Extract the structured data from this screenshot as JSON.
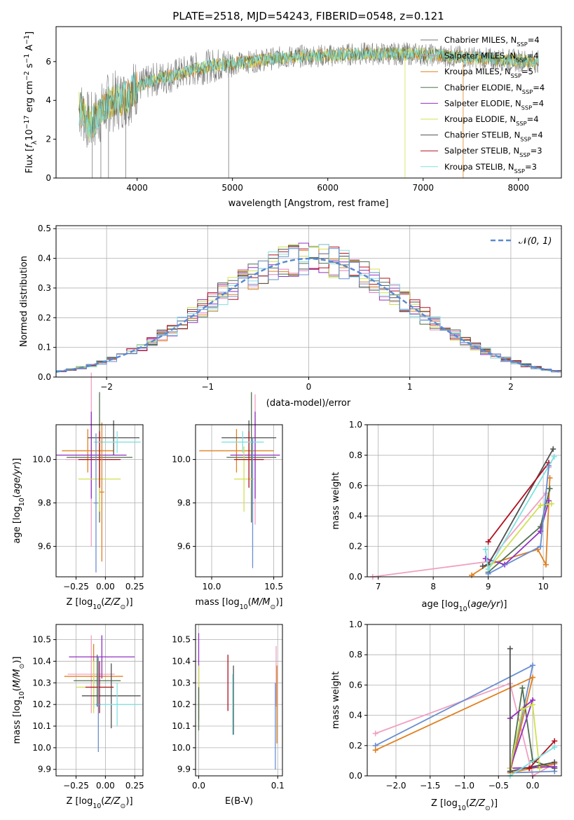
{
  "figure": {
    "title": "PLATE=2518, MJD=54243, FIBERID=0548, z=0.121"
  },
  "colors": {
    "series": [
      "#f0a0c0",
      "#f0a0c0",
      "#e08020",
      "#507050",
      "#9030c0",
      "#d0e050",
      "#505050",
      "#b01020",
      "#80e0e0",
      "#6a8fd0"
    ],
    "legend_line_colors": [
      "#7a7a7a",
      "#e080c0",
      "#e08020",
      "#507050",
      "#9030c0",
      "#d0e050",
      "#505050",
      "#b01020",
      "#80e0e0"
    ],
    "gaussian": "#5a8ad0",
    "grid": "#b0b0b0"
  },
  "chart_data": [
    {
      "id": "spectrum",
      "type": "line",
      "title": "PLATE=2518, MJD=54243, FIBERID=0548, z=0.121",
      "xlabel": "wavelength [Angstrom, rest frame]",
      "ylabel": "Flux [f_λ 10^-17 erg cm^-2 s^-1 A^-1]",
      "xlim": [
        3150,
        8450
      ],
      "ylim": [
        0,
        7.8
      ],
      "xticks": [
        4000,
        5000,
        6000,
        7000,
        8000
      ],
      "yticks": [
        0,
        2,
        4,
        6
      ],
      "grid": false,
      "legend_position": "right",
      "legend": [
        "Chabrier MILES, N_SSP=4",
        "Salpeter MILES, N_SSP=4",
        "Kroupa MILES, N_SSP=5",
        "Chabrier ELODIE, N_SSP=4",
        "Salpeter ELODIE, N_SSP=4",
        "Kroupa ELODIE, N_SSP=4",
        "Chabrier STELIB, N_SSP=4",
        "Salpeter STELIB, N_SSP=3",
        "Kroupa STELIB, N_SSP=3"
      ],
      "continuum": {
        "x": [
          3400,
          3500,
          3600,
          3700,
          3800,
          3900,
          4000,
          4200,
          4400,
          4600,
          4800,
          5000,
          5200,
          5500,
          5800,
          6000,
          6300,
          6600,
          6900,
          7200,
          7500,
          7800,
          8000,
          8200
        ],
        "y": [
          3.6,
          2.8,
          3.2,
          3.9,
          4.0,
          4.2,
          4.7,
          5.1,
          5.3,
          5.6,
          5.8,
          5.9,
          6.0,
          6.2,
          6.3,
          6.3,
          6.4,
          6.4,
          6.4,
          6.3,
          6.2,
          6.1,
          6.05,
          6.0
        ]
      }
    },
    {
      "id": "residuals",
      "type": "line",
      "xlabel": "(data-model)/error",
      "ylabel": "Normed distribution",
      "xlim": [
        -2.5,
        2.5
      ],
      "ylim": [
        0,
        0.51
      ],
      "xticks": [
        -2,
        -1,
        0,
        1,
        2
      ],
      "xtick_labels": [
        "−2",
        "−1",
        "0",
        "1",
        "2"
      ],
      "yticks": [
        0.0,
        0.1,
        0.2,
        0.3,
        0.4,
        0.5
      ],
      "grid": true,
      "legend": [
        "N(0,1)"
      ],
      "legend_position": "top-right",
      "bin_width": 0.1,
      "gaussian": {
        "mean": 0,
        "sigma": 1
      }
    },
    {
      "id": "age-vs-Z",
      "type": "scatter",
      "xlabel": "Z [log10(Z/Z⊙)]",
      "ylabel": "age [log10(age/yr)]",
      "xlim": [
        -0.42,
        0.32
      ],
      "ylim": [
        9.46,
        10.16
      ],
      "xticks": [
        -0.25,
        0.0,
        0.25
      ],
      "xtick_labels": [
        "−0.25",
        "0.00",
        "0.25"
      ],
      "yticks": [
        9.6,
        9.8,
        10.0
      ],
      "grid": true,
      "points": [
        {
          "x": -0.12,
          "y": 10.0,
          "xerr": 0.22,
          "yerr": 0.4,
          "c": 0
        },
        {
          "x": -0.15,
          "y": 10.04,
          "xerr": 0.22,
          "yerr": 0.1,
          "c": 2
        },
        {
          "x": -0.05,
          "y": 10.01,
          "xerr": 0.28,
          "yerr": 0.3,
          "c": 3
        },
        {
          "x": -0.12,
          "y": 10.02,
          "xerr": 0.3,
          "yerr": 0.2,
          "c": 4
        },
        {
          "x": -0.05,
          "y": 9.91,
          "xerr": 0.18,
          "yerr": 0.15,
          "c": 5
        },
        {
          "x": 0.07,
          "y": 10.1,
          "xerr": 0.22,
          "yerr": 0.08,
          "c": 6
        },
        {
          "x": -0.05,
          "y": 10.0,
          "xerr": 0.18,
          "yerr": 0.13,
          "c": 7
        },
        {
          "x": 0.1,
          "y": 10.08,
          "xerr": 0.2,
          "yerr": 0.05,
          "c": 8
        },
        {
          "x": -0.08,
          "y": 9.8,
          "xerr": 0.02,
          "yerr": 0.32,
          "c": 9
        },
        {
          "x": -0.03,
          "y": 9.85,
          "xerr": 0.02,
          "yerr": 0.32,
          "c": 2
        }
      ]
    },
    {
      "id": "age-vs-mass",
      "type": "scatter",
      "xlabel": "mass [log10(M/M⊙)]",
      "xlim": [
        9.87,
        10.57
      ],
      "ylim": [
        9.46,
        10.16
      ],
      "xticks": [
        10.0,
        10.5
      ],
      "yticks": [
        9.6,
        9.8,
        10.0
      ],
      "grid": true,
      "points": [
        {
          "x": 10.35,
          "y": 10.0,
          "xerr": 0.13,
          "yerr": 0.3,
          "c": 0
        },
        {
          "x": 10.2,
          "y": 10.04,
          "xerr": 0.3,
          "yerr": 0.1,
          "c": 2
        },
        {
          "x": 10.32,
          "y": 10.01,
          "xerr": 0.2,
          "yerr": 0.3,
          "c": 3
        },
        {
          "x": 10.35,
          "y": 10.02,
          "xerr": 0.2,
          "yerr": 0.2,
          "c": 4
        },
        {
          "x": 10.26,
          "y": 9.91,
          "xerr": 0.08,
          "yerr": 0.15,
          "c": 5
        },
        {
          "x": 10.3,
          "y": 10.1,
          "xerr": 0.22,
          "yerr": 0.08,
          "c": 6
        },
        {
          "x": 10.3,
          "y": 10.0,
          "xerr": 0.12,
          "yerr": 0.13,
          "c": 7
        },
        {
          "x": 10.25,
          "y": 10.08,
          "xerr": 0.17,
          "yerr": 0.05,
          "c": 8
        },
        {
          "x": 10.33,
          "y": 9.8,
          "xerr": 0.01,
          "yerr": 0.3,
          "c": 9
        }
      ]
    },
    {
      "id": "massweight-vs-age",
      "type": "line",
      "xlabel": "age [log10(age/yr)]",
      "ylabel": "mass weight",
      "xlim": [
        6.8,
        10.33
      ],
      "ylim": [
        0,
        1.0
      ],
      "xticks": [
        7,
        8,
        9,
        10
      ],
      "yticks": [
        0.0,
        0.2,
        0.4,
        0.6,
        0.8,
        1.0
      ],
      "grid": true,
      "series": [
        {
          "c": 0,
          "points": [
            [
              6.9,
              0.0
            ],
            [
              9.0,
              0.1
            ],
            [
              10.05,
              0.55
            ],
            [
              10.1,
              0.72
            ]
          ]
        },
        {
          "c": 2,
          "points": [
            [
              8.7,
              0.01
            ],
            [
              9.0,
              0.08
            ],
            [
              9.9,
              0.18
            ],
            [
              10.05,
              0.08
            ],
            [
              10.12,
              0.65
            ]
          ]
        },
        {
          "c": 3,
          "points": [
            [
              9.0,
              0.03
            ],
            [
              9.95,
              0.33
            ],
            [
              10.12,
              0.58
            ]
          ]
        },
        {
          "c": 4,
          "points": [
            [
              8.95,
              0.12
            ],
            [
              9.3,
              0.08
            ],
            [
              9.95,
              0.3
            ],
            [
              10.1,
              0.5
            ]
          ]
        },
        {
          "c": 5,
          "points": [
            [
              9.0,
              0.05
            ],
            [
              9.95,
              0.47
            ],
            [
              10.15,
              0.48
            ]
          ]
        },
        {
          "c": 6,
          "points": [
            [
              8.9,
              0.07
            ],
            [
              9.0,
              0.08
            ],
            [
              10.18,
              0.84
            ]
          ]
        },
        {
          "c": 7,
          "points": [
            [
              9.0,
              0.23
            ],
            [
              10.1,
              0.75
            ]
          ]
        },
        {
          "c": 8,
          "points": [
            [
              8.95,
              0.18
            ],
            [
              9.0,
              0.05
            ],
            [
              10.2,
              0.79
            ]
          ]
        },
        {
          "c": 9,
          "points": [
            [
              9.0,
              0.02
            ],
            [
              9.95,
              0.2
            ],
            [
              10.1,
              0.73
            ]
          ]
        }
      ]
    },
    {
      "id": "mass-vs-Z",
      "type": "scatter",
      "xlabel": "Z [log10(Z/Z⊙)]",
      "ylabel": "mass [log10(M/M⊙)]",
      "xlim": [
        -0.42,
        0.32
      ],
      "ylim": [
        9.87,
        10.57
      ],
      "xticks": [
        -0.25,
        0.0,
        0.25
      ],
      "xtick_labels": [
        "−0.25",
        "0.00",
        "0.25"
      ],
      "yticks": [
        9.9,
        10.0,
        10.1,
        10.2,
        10.3,
        10.4,
        10.5
      ],
      "grid": true,
      "points": [
        {
          "x": -0.12,
          "y": 10.34,
          "xerr": 0.2,
          "yerr": 0.18,
          "c": 0
        },
        {
          "x": -0.1,
          "y": 10.33,
          "xerr": 0.25,
          "yerr": 0.15,
          "c": 2
        },
        {
          "x": -0.07,
          "y": 10.31,
          "xerr": 0.2,
          "yerr": 0.12,
          "c": 3
        },
        {
          "x": -0.03,
          "y": 10.42,
          "xerr": 0.28,
          "yerr": 0.1,
          "c": 4
        },
        {
          "x": -0.1,
          "y": 10.28,
          "xerr": 0.15,
          "yerr": 0.12,
          "c": 5
        },
        {
          "x": 0.05,
          "y": 10.24,
          "xerr": 0.25,
          "yerr": 0.15,
          "c": 6
        },
        {
          "x": -0.05,
          "y": 10.28,
          "xerr": 0.12,
          "yerr": 0.12,
          "c": 7
        },
        {
          "x": 0.1,
          "y": 10.2,
          "xerr": 0.2,
          "yerr": 0.1,
          "c": 8
        },
        {
          "x": -0.06,
          "y": 10.2,
          "xerr": 0.02,
          "yerr": 0.22,
          "c": 9
        }
      ]
    },
    {
      "id": "mass-vs-ebv",
      "type": "scatter",
      "xlabel": "E(B-V)",
      "xlim": [
        -0.004,
        0.106
      ],
      "ylim": [
        9.87,
        10.57
      ],
      "xticks": [
        0.0,
        0.1
      ],
      "xtick_labels": [
        "0.0",
        "0.1"
      ],
      "yticks": [
        9.9,
        10.0,
        10.1,
        10.2,
        10.3,
        10.4,
        10.5
      ],
      "grid": true,
      "points": [
        {
          "x": 0.0,
          "y": 10.33,
          "xerr": 0.0,
          "yerr": 0.2,
          "c": 4
        },
        {
          "x": 0.0,
          "y": 10.25,
          "xerr": 0.0,
          "yerr": 0.13,
          "c": 5
        },
        {
          "x": 0.0,
          "y": 10.18,
          "xerr": 0.0,
          "yerr": 0.1,
          "c": 3
        },
        {
          "x": 0.037,
          "y": 10.3,
          "xerr": 0.0,
          "yerr": 0.13,
          "c": 7
        },
        {
          "x": 0.044,
          "y": 10.22,
          "xerr": 0.0,
          "yerr": 0.16,
          "c": 6
        },
        {
          "x": 0.043,
          "y": 10.2,
          "xerr": 0.0,
          "yerr": 0.14,
          "c": 8
        },
        {
          "x": 0.098,
          "y": 10.33,
          "xerr": 0.0,
          "yerr": 0.14,
          "c": 0
        },
        {
          "x": 0.099,
          "y": 10.2,
          "xerr": 0.0,
          "yerr": 0.18,
          "c": 2
        },
        {
          "x": 0.097,
          "y": 10.1,
          "xerr": 0.0,
          "yerr": 0.2,
          "c": 9
        }
      ]
    },
    {
      "id": "massweight-vs-Z",
      "type": "line",
      "xlabel": "Z [log10(Z/Z⊙)]",
      "ylabel": "mass weight",
      "xlim": [
        -2.42,
        0.42
      ],
      "ylim": [
        0,
        1.0
      ],
      "xticks": [
        -2.0,
        -1.5,
        -1.0,
        -0.5,
        0.0
      ],
      "xtick_labels": [
        "−2.0",
        "−1.5",
        "−1.0",
        "−0.5",
        "0.0"
      ],
      "yticks": [
        0.0,
        0.2,
        0.4,
        0.6,
        0.8,
        1.0
      ],
      "grid": true,
      "series": [
        {
          "c": 0,
          "points": [
            [
              -2.3,
              0.28
            ],
            [
              -0.33,
              0.61
            ],
            [
              0.0,
              0.0
            ],
            [
              0.32,
              0.08
            ]
          ]
        },
        {
          "c": 9,
          "points": [
            [
              -2.3,
              0.2
            ],
            [
              0.0,
              0.73
            ],
            [
              -0.33,
              0.02
            ],
            [
              0.32,
              0.03
            ]
          ]
        },
        {
          "c": 2,
          "points": [
            [
              -2.3,
              0.17
            ],
            [
              0.0,
              0.65
            ],
            [
              -0.33,
              0.02
            ],
            [
              0.32,
              0.08
            ]
          ]
        },
        {
          "c": 3,
          "points": [
            [
              -0.33,
              0.03
            ],
            [
              -0.15,
              0.58
            ],
            [
              0.0,
              0.1
            ],
            [
              0.32,
              0.05
            ]
          ]
        },
        {
          "c": 4,
          "points": [
            [
              -0.33,
              0.38
            ],
            [
              0.0,
              0.5
            ],
            [
              -0.33,
              0.05
            ],
            [
              0.32,
              0.06
            ]
          ]
        },
        {
          "c": 5,
          "points": [
            [
              -0.33,
              0.05
            ],
            [
              -0.15,
              0.44
            ],
            [
              0.0,
              0.47
            ],
            [
              0.1,
              0.05
            ]
          ]
        },
        {
          "c": 6,
          "points": [
            [
              -0.33,
              0.84
            ],
            [
              -0.33,
              0.03
            ],
            [
              0.32,
              0.09
            ]
          ]
        },
        {
          "c": 7,
          "points": [
            [
              -0.05,
              0.05
            ],
            [
              0.32,
              0.23
            ]
          ]
        },
        {
          "c": 8,
          "points": [
            [
              -0.33,
              0.0
            ],
            [
              0.32,
              0.19
            ]
          ]
        }
      ]
    }
  ]
}
